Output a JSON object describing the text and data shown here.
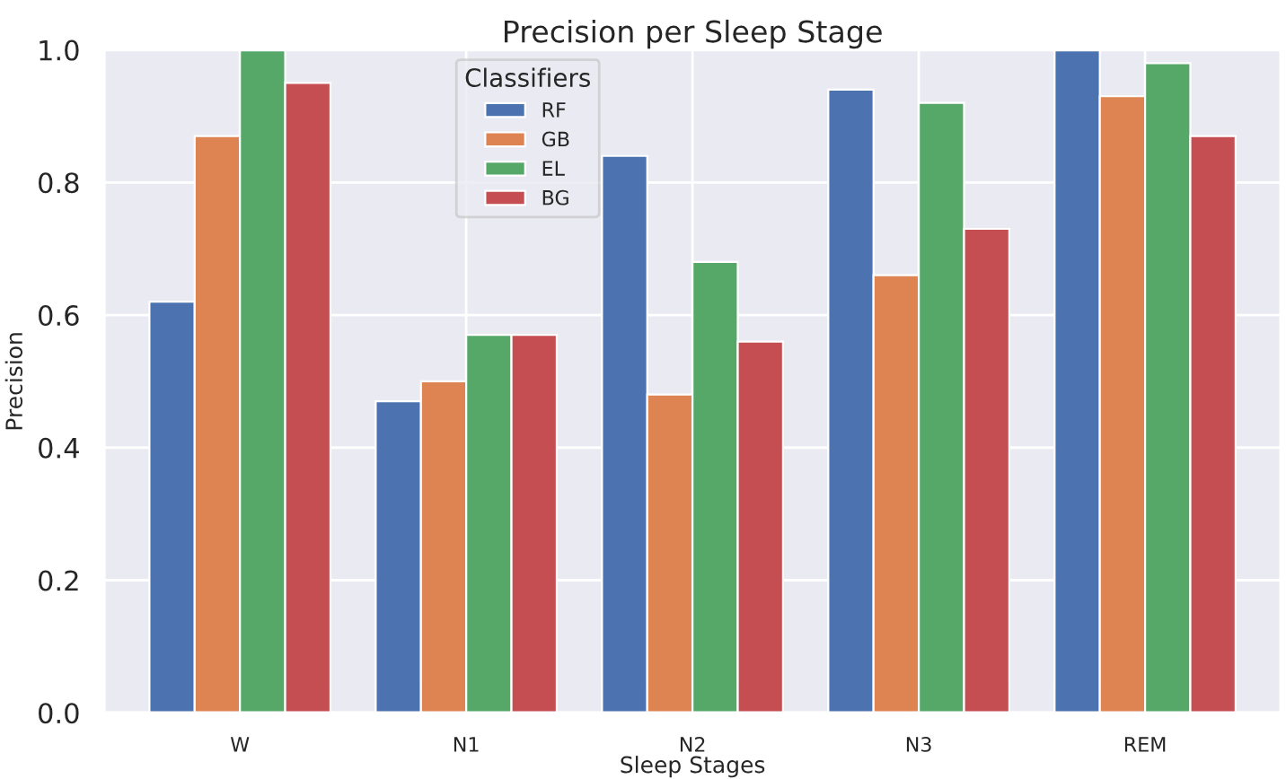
{
  "chart_data": {
    "type": "bar",
    "title": "Precision per Sleep Stage",
    "xlabel": "Sleep Stages",
    "ylabel": "Precision",
    "categories": [
      "W",
      "N1",
      "N2",
      "N3",
      "REM"
    ],
    "series": [
      {
        "name": "RF",
        "color": "#4c72b0",
        "values": [
          0.62,
          0.47,
          0.84,
          0.94,
          1.0
        ]
      },
      {
        "name": "GB",
        "color": "#dd8452",
        "values": [
          0.87,
          0.5,
          0.48,
          0.66,
          0.93
        ]
      },
      {
        "name": "EL",
        "color": "#55a868",
        "values": [
          1.0,
          0.57,
          0.68,
          0.92,
          0.98
        ]
      },
      {
        "name": "BG",
        "color": "#c44e52",
        "values": [
          0.95,
          0.57,
          0.56,
          0.73,
          0.87
        ]
      }
    ],
    "ylim": [
      0,
      1
    ],
    "yticks": [
      {
        "value": 0,
        "label": "0.0"
      },
      {
        "value": 0.2,
        "label": "0.2"
      },
      {
        "value": 0.4,
        "label": "0.4"
      },
      {
        "value": 0.6,
        "label": "0.6"
      },
      {
        "value": 0.8,
        "label": "0.8"
      },
      {
        "value": 1,
        "label": "1.0"
      }
    ],
    "grid": true,
    "legend": "top",
    "legend_title": "Classifiers"
  }
}
